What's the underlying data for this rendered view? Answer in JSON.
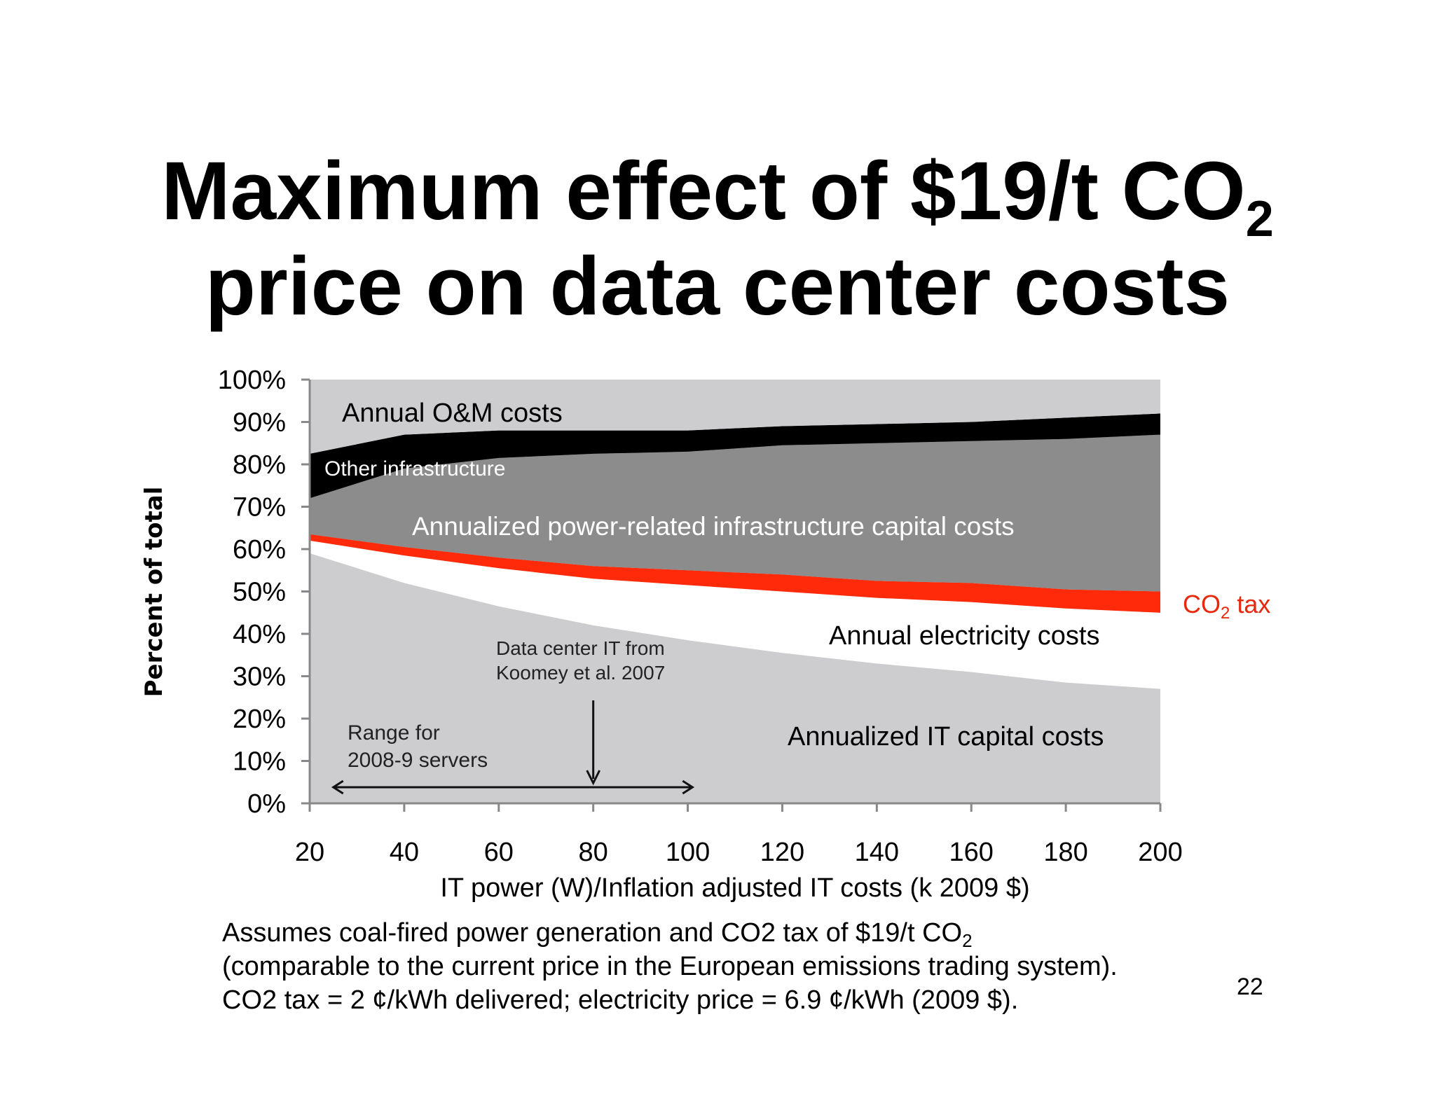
{
  "title": {
    "line1_prefix": "Maximum effect of $19/t CO",
    "line1_sub": "2",
    "line2": "price on data center costs"
  },
  "footnote": {
    "line1_prefix": "Assumes coal-fired power generation and CO2 tax of $19/t CO",
    "line1_sub": "2",
    "line2": "(comparable to the current price in the European emissions trading system).",
    "line3": "CO2 tax = 2 ¢/kWh delivered; electricity price = 6.9 ¢/kWh (2009 $)."
  },
  "page_number": "22",
  "colors": {
    "om": "#cdcdcf",
    "other_infra": "#000000",
    "power_infra": "#8c8c8c",
    "co2_tax": "#ff2a0a",
    "electricity": "#ffffff",
    "it_capital": "#cdcdcf",
    "co2_label": "#e8280c"
  },
  "chart_data": {
    "type": "area",
    "title": "",
    "xlabel": "IT power (W)/Inflation adjusted IT costs (k 2009 $)",
    "ylabel": "Percent of total",
    "xlim": [
      20,
      200
    ],
    "ylim": [
      0,
      100
    ],
    "x_ticks": [
      "20",
      "40",
      "60",
      "80",
      "100",
      "120",
      "140",
      "160",
      "180",
      "200"
    ],
    "y_ticks": [
      "0%",
      "10%",
      "20%",
      "30%",
      "40%",
      "50%",
      "60%",
      "70%",
      "80%",
      "90%",
      "100%"
    ],
    "x": [
      20,
      40,
      60,
      80,
      100,
      120,
      140,
      160,
      180,
      200
    ],
    "series": [
      {
        "name": "Annualized IT capital costs",
        "values": [
          59,
          52,
          46.5,
          42,
          38.5,
          35.5,
          33,
          31,
          28.5,
          27
        ]
      },
      {
        "name": "Annual electricity costs",
        "values": [
          3,
          6.5,
          9,
          11,
          13,
          14.5,
          15.5,
          16.5,
          17.5,
          18
        ]
      },
      {
        "name": "CO2 tax",
        "values": [
          1.5,
          2,
          2.5,
          3,
          3.5,
          4,
          4,
          4.5,
          4.5,
          5
        ]
      },
      {
        "name": "Annualized power-related infrastructure capital costs",
        "values": [
          8.5,
          18.5,
          23.5,
          26.5,
          28,
          30.5,
          32.5,
          33.5,
          35.5,
          37
        ]
      },
      {
        "name": "Other infrastructure",
        "values": [
          10.5,
          8,
          6.5,
          5.5,
          5,
          4.5,
          4.5,
          4.5,
          5,
          5
        ]
      },
      {
        "name": "Annual O&M costs",
        "values": [
          17.5,
          13,
          12,
          11.5,
          12,
          11,
          10.5,
          10,
          9,
          8
        ]
      }
    ],
    "series_labels": {
      "om": "Annual O&M costs",
      "other_infra": "Other infrastructure",
      "power_infra": "Annualized power-related infrastructure capital costs",
      "electricity": "Annual electricity costs",
      "it_capital": "Annualized IT capital costs",
      "co2_prefix": "CO",
      "co2_sub": "2",
      "co2_suffix": " tax"
    },
    "annotations": {
      "koomey_line1": "Data center IT from",
      "koomey_line2": "Koomey et al. 2007",
      "koomey_x": 80,
      "range_line1": "Range for",
      "range_line2": "2008-9 servers",
      "range_x": [
        25,
        101
      ]
    }
  }
}
